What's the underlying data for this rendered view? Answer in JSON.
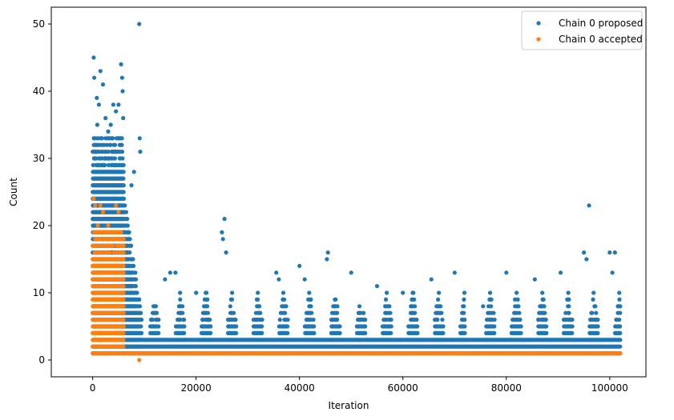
{
  "chart_data": {
    "type": "scatter",
    "title": "",
    "xlabel": "Iteration",
    "ylabel": "Count",
    "xlim": [
      -8000,
      107000
    ],
    "ylim": [
      -2.5,
      52.5
    ],
    "x_ticks": [
      0,
      20000,
      40000,
      60000,
      80000,
      100000
    ],
    "y_ticks": [
      0,
      10,
      20,
      30,
      40,
      50
    ],
    "grid": false,
    "legend_position": "top-right",
    "series": [
      {
        "name": "Chain 0 proposed",
        "color": "#1f77b4",
        "description_points": [
          [
            200,
            45
          ],
          [
            300,
            42
          ],
          [
            800,
            39
          ],
          [
            1500,
            43
          ],
          [
            2000,
            41
          ],
          [
            1200,
            38
          ],
          [
            900,
            35
          ],
          [
            2500,
            36
          ],
          [
            3000,
            34
          ],
          [
            3500,
            35
          ],
          [
            4000,
            38
          ],
          [
            4500,
            37
          ],
          [
            5000,
            38
          ],
          [
            5500,
            44
          ],
          [
            5700,
            42
          ],
          [
            5800,
            40
          ],
          [
            5900,
            36
          ],
          [
            9000,
            50
          ],
          [
            9100,
            33
          ],
          [
            9200,
            31
          ],
          [
            8000,
            28
          ],
          [
            7500,
            26
          ],
          [
            25500,
            21
          ],
          [
            25000,
            19
          ],
          [
            25200,
            18
          ],
          [
            25800,
            16
          ],
          [
            15000,
            13
          ],
          [
            16000,
            13
          ],
          [
            14000,
            12
          ],
          [
            20000,
            10
          ],
          [
            35500,
            13
          ],
          [
            36000,
            12
          ],
          [
            40000,
            14
          ],
          [
            41000,
            12
          ],
          [
            45500,
            16
          ],
          [
            45300,
            15
          ],
          [
            50000,
            13
          ],
          [
            55000,
            11
          ],
          [
            60000,
            10
          ],
          [
            65500,
            12
          ],
          [
            70000,
            13
          ],
          [
            75500,
            8
          ],
          [
            80000,
            13
          ],
          [
            85500,
            12
          ],
          [
            90500,
            13
          ],
          [
            95000,
            16
          ],
          [
            96000,
            23
          ],
          [
            95500,
            15
          ],
          [
            100000,
            16
          ],
          [
            101000,
            16
          ],
          [
            100500,
            13
          ]
        ]
      },
      {
        "name": "Chain 0 accepted",
        "color": "#ff7f0e",
        "description_points": [
          [
            200,
            24
          ],
          [
            500,
            23
          ],
          [
            1500,
            23
          ],
          [
            2000,
            22
          ],
          [
            4500,
            23
          ],
          [
            5000,
            22
          ],
          [
            1000,
            20
          ],
          [
            3000,
            20
          ],
          [
            9000,
            0
          ]
        ]
      }
    ]
  }
}
